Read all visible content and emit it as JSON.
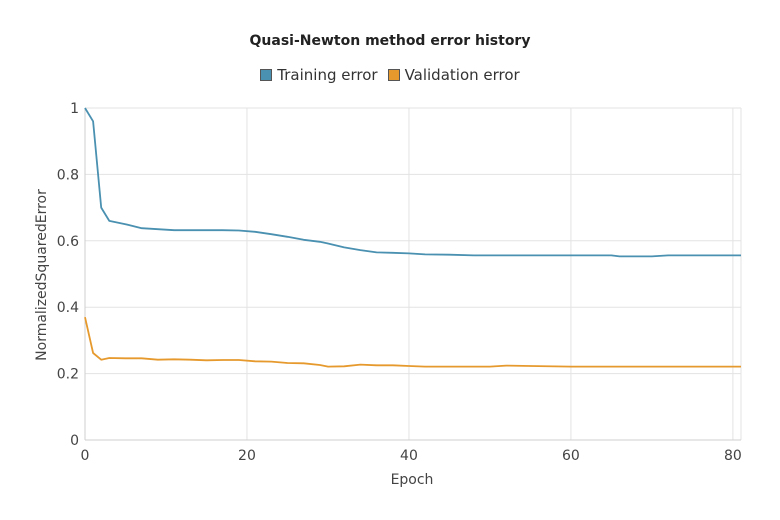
{
  "chart_data": {
    "type": "line",
    "title": "Quasi-Newton method error history",
    "xlabel": "Epoch",
    "ylabel": "NormalizedSquaredError",
    "xlim": [
      0,
      81
    ],
    "ylim": [
      0,
      1
    ],
    "xticks": [
      0,
      20,
      40,
      60,
      80
    ],
    "yticks": [
      0,
      0.2,
      0.4,
      0.6,
      0.8,
      1
    ],
    "grid": true,
    "legend_position": "top-center",
    "series": [
      {
        "name": "Training error",
        "color": "#4a90b0",
        "x": [
          0,
          1,
          2,
          3,
          5,
          7,
          9,
          11,
          13,
          15,
          17,
          19,
          21,
          23,
          25,
          27,
          29,
          30,
          32,
          34,
          36,
          38,
          40,
          42,
          45,
          48,
          50,
          55,
          60,
          65,
          66,
          70,
          72,
          75,
          80,
          81
        ],
        "y": [
          1.0,
          0.96,
          0.7,
          0.66,
          0.65,
          0.638,
          0.635,
          0.632,
          0.632,
          0.632,
          0.632,
          0.631,
          0.627,
          0.62,
          0.612,
          0.603,
          0.597,
          0.592,
          0.58,
          0.572,
          0.565,
          0.564,
          0.562,
          0.559,
          0.558,
          0.556,
          0.556,
          0.556,
          0.556,
          0.556,
          0.553,
          0.553,
          0.556,
          0.556,
          0.556,
          0.556
        ]
      },
      {
        "name": "Validation error",
        "color": "#e69a2e",
        "x": [
          0,
          1,
          2,
          3,
          5,
          7,
          9,
          11,
          13,
          15,
          17,
          19,
          21,
          23,
          25,
          27,
          29,
          30,
          32,
          34,
          36,
          38,
          40,
          42,
          45,
          48,
          50,
          52,
          55,
          60,
          65,
          70,
          75,
          80,
          81
        ],
        "y": [
          0.37,
          0.262,
          0.242,
          0.247,
          0.246,
          0.246,
          0.242,
          0.243,
          0.242,
          0.24,
          0.241,
          0.241,
          0.237,
          0.236,
          0.232,
          0.231,
          0.226,
          0.221,
          0.222,
          0.227,
          0.225,
          0.225,
          0.223,
          0.221,
          0.221,
          0.221,
          0.221,
          0.224,
          0.223,
          0.221,
          0.221,
          0.221,
          0.221,
          0.221,
          0.221
        ]
      }
    ]
  }
}
